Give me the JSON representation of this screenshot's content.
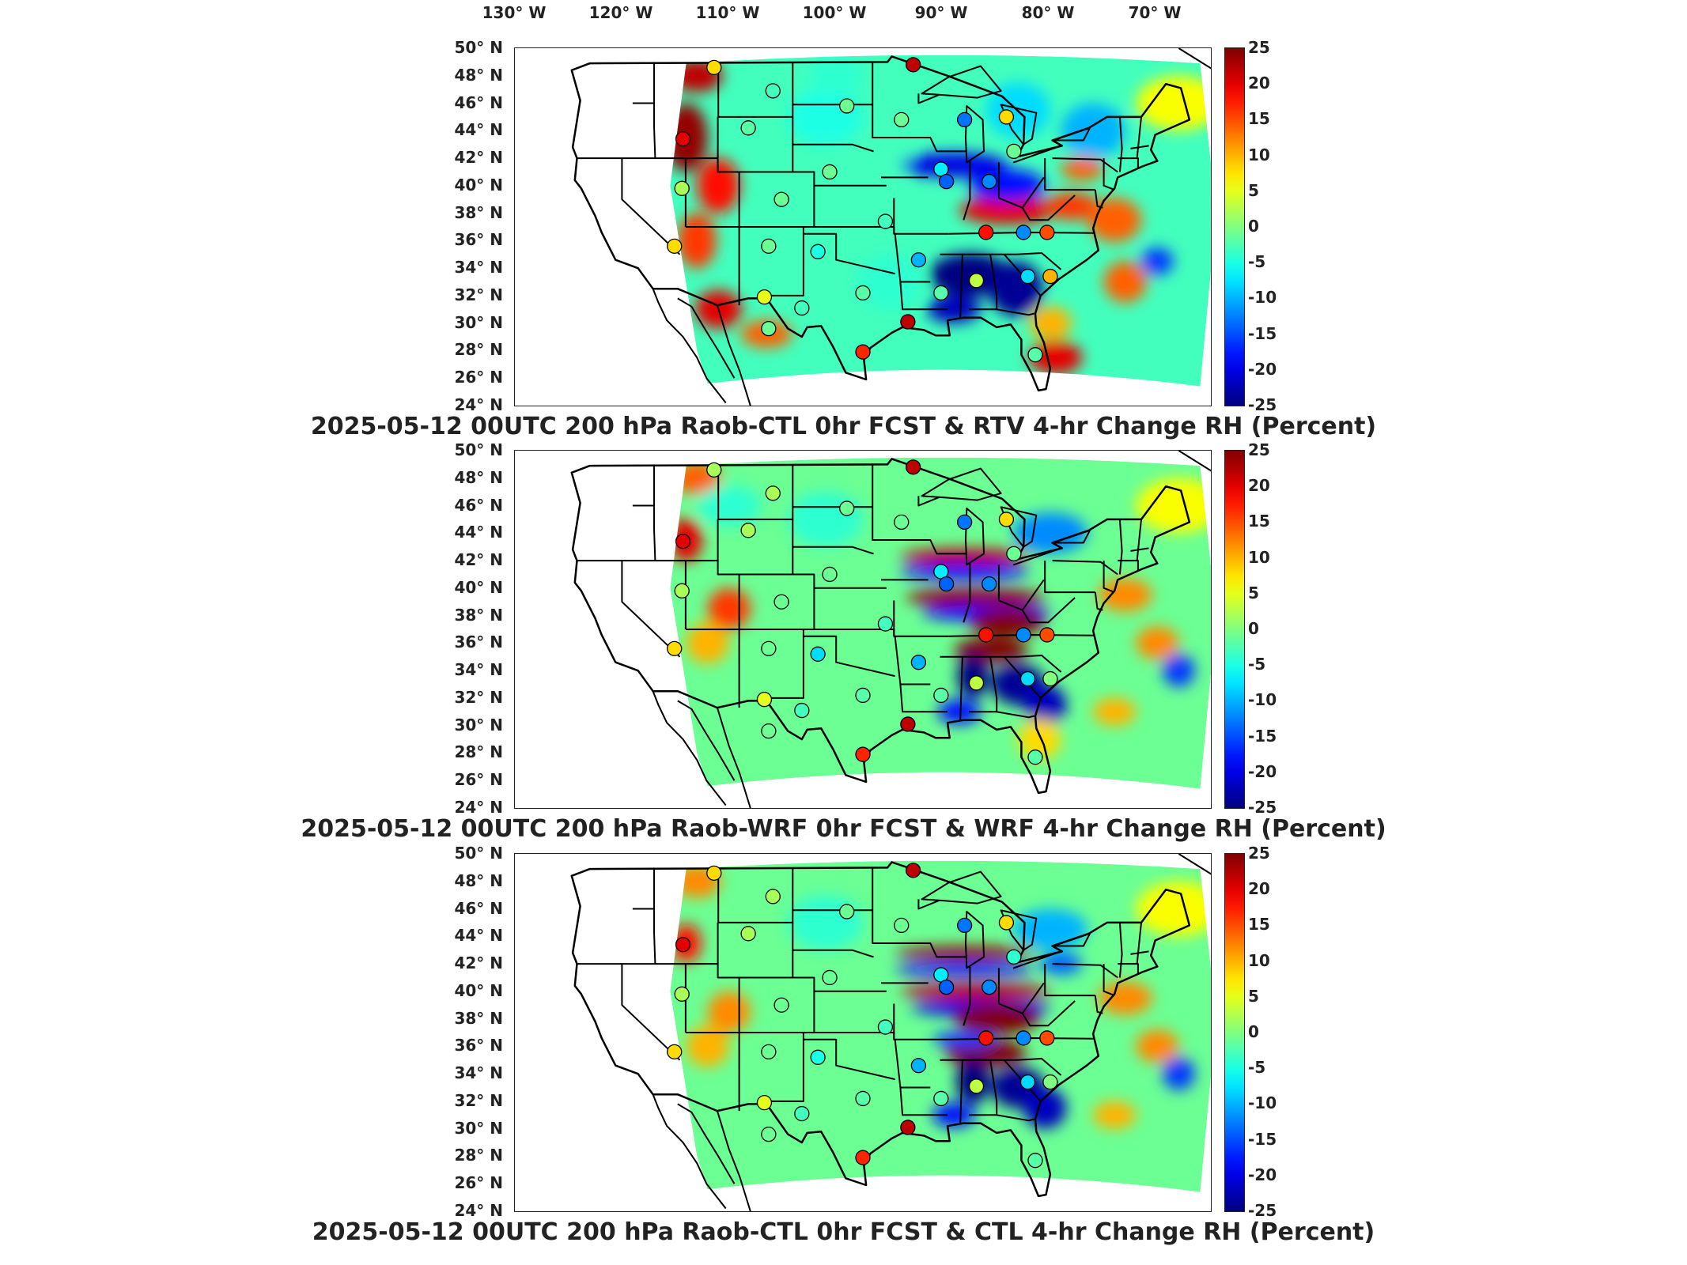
{
  "lon_labels": [
    "130° W",
    "120° W",
    "110° W",
    "100° W",
    "90° W",
    "80° W",
    "70° W"
  ],
  "lat_labels": [
    "50° N",
    "48° N",
    "46° N",
    "44° N",
    "42° N",
    "40° N",
    "38° N",
    "36° N",
    "34° N",
    "32° N",
    "30° N",
    "28° N",
    "26° N",
    "24° N"
  ],
  "colorbar": {
    "ticks": [
      "25",
      "20",
      "15",
      "10",
      "5",
      "0",
      "-5",
      "-10",
      "-15",
      "-20",
      "-25"
    ],
    "min": -25,
    "max": 25,
    "colormap": "jet"
  },
  "panels": [
    {
      "title": "2025-05-12 00UTC 200 hPa Raob-CTL 0hr FCST & RTV 4-hr Change RH (Percent)",
      "variant": "rtv"
    },
    {
      "title": "2025-05-12 00UTC 200 hPa Raob-WRF 0hr FCST & WRF 4-hr Change RH (Percent)",
      "variant": "wrf"
    },
    {
      "title": "2025-05-12 00UTC 200 hPa Raob-CTL 0hr FCST & CTL 4-hr Change RH (Percent)",
      "variant": "ctl"
    }
  ],
  "stations": [
    {
      "lon": -111.4,
      "lat": 48.6,
      "values": [
        8,
        2,
        8
      ]
    },
    {
      "lon": -92.8,
      "lat": 48.8,
      "values": [
        22,
        22,
        22
      ]
    },
    {
      "lon": -105.9,
      "lat": 46.9,
      "values": [
        -3,
        2,
        2
      ]
    },
    {
      "lon": -108.2,
      "lat": 44.2,
      "values": [
        -2,
        2,
        2
      ]
    },
    {
      "lon": -99.0,
      "lat": 45.8,
      "values": [
        -1,
        -1,
        -1
      ]
    },
    {
      "lon": -93.9,
      "lat": 44.8,
      "values": [
        -1,
        -1,
        -1
      ]
    },
    {
      "lon": -88.0,
      "lat": 44.8,
      "values": [
        -13,
        -13,
        -13
      ]
    },
    {
      "lon": -84.1,
      "lat": 45.0,
      "values": [
        8,
        8,
        8
      ]
    },
    {
      "lon": -114.3,
      "lat": 43.4,
      "values": [
        20,
        20,
        20
      ]
    },
    {
      "lon": -83.4,
      "lat": 42.5,
      "values": [
        -1,
        -1,
        -4
      ]
    },
    {
      "lon": -90.2,
      "lat": 41.2,
      "values": [
        -7,
        -7,
        -7
      ]
    },
    {
      "lon": -100.6,
      "lat": 41.0,
      "values": [
        -1,
        -1,
        -1
      ]
    },
    {
      "lon": -89.7,
      "lat": 40.3,
      "values": [
        -14,
        -14,
        -14
      ]
    },
    {
      "lon": -85.7,
      "lat": 40.3,
      "values": [
        -12,
        -12,
        -12
      ]
    },
    {
      "lon": -114.4,
      "lat": 39.8,
      "values": [
        2,
        2,
        2
      ]
    },
    {
      "lon": -105.1,
      "lat": 39.0,
      "values": [
        -1,
        -1,
        -1
      ]
    },
    {
      "lon": -95.4,
      "lat": 37.4,
      "values": [
        -3,
        -3,
        -3
      ]
    },
    {
      "lon": -86.0,
      "lat": 36.6,
      "values": [
        18,
        18,
        18
      ]
    },
    {
      "lon": -82.5,
      "lat": 36.6,
      "values": [
        -12,
        -12,
        -12
      ]
    },
    {
      "lon": -80.3,
      "lat": 36.6,
      "values": [
        15,
        15,
        15
      ]
    },
    {
      "lon": -115.1,
      "lat": 35.6,
      "values": [
        8,
        8,
        8
      ]
    },
    {
      "lon": -106.3,
      "lat": 35.6,
      "values": [
        -1,
        -1,
        -1
      ]
    },
    {
      "lon": -101.7,
      "lat": 35.2,
      "values": [
        -5,
        -8,
        -5
      ]
    },
    {
      "lon": -92.3,
      "lat": 34.6,
      "values": [
        -10,
        -10,
        -10
      ]
    },
    {
      "lon": -82.1,
      "lat": 33.4,
      "values": [
        -8,
        -8,
        -8
      ]
    },
    {
      "lon": -80.0,
      "lat": 33.4,
      "values": [
        10,
        0,
        0
      ]
    },
    {
      "lon": -86.9,
      "lat": 33.1,
      "values": [
        3,
        3,
        3
      ]
    },
    {
      "lon": -90.2,
      "lat": 32.2,
      "values": [
        -2,
        -2,
        -2
      ]
    },
    {
      "lon": -97.5,
      "lat": 32.2,
      "values": [
        -2,
        -2,
        -2
      ]
    },
    {
      "lon": -106.7,
      "lat": 31.9,
      "values": [
        5,
        5,
        5
      ]
    },
    {
      "lon": -103.2,
      "lat": 31.1,
      "values": [
        -3,
        -3,
        -3
      ]
    },
    {
      "lon": -93.3,
      "lat": 30.1,
      "values": [
        22,
        22,
        22
      ]
    },
    {
      "lon": -106.3,
      "lat": 29.6,
      "values": [
        -1,
        -1,
        -1
      ]
    },
    {
      "lon": -97.5,
      "lat": 27.9,
      "values": [
        17,
        17,
        17
      ]
    },
    {
      "lon": -81.4,
      "lat": 27.7,
      "values": [
        -2,
        -2,
        -2
      ]
    }
  ]
}
